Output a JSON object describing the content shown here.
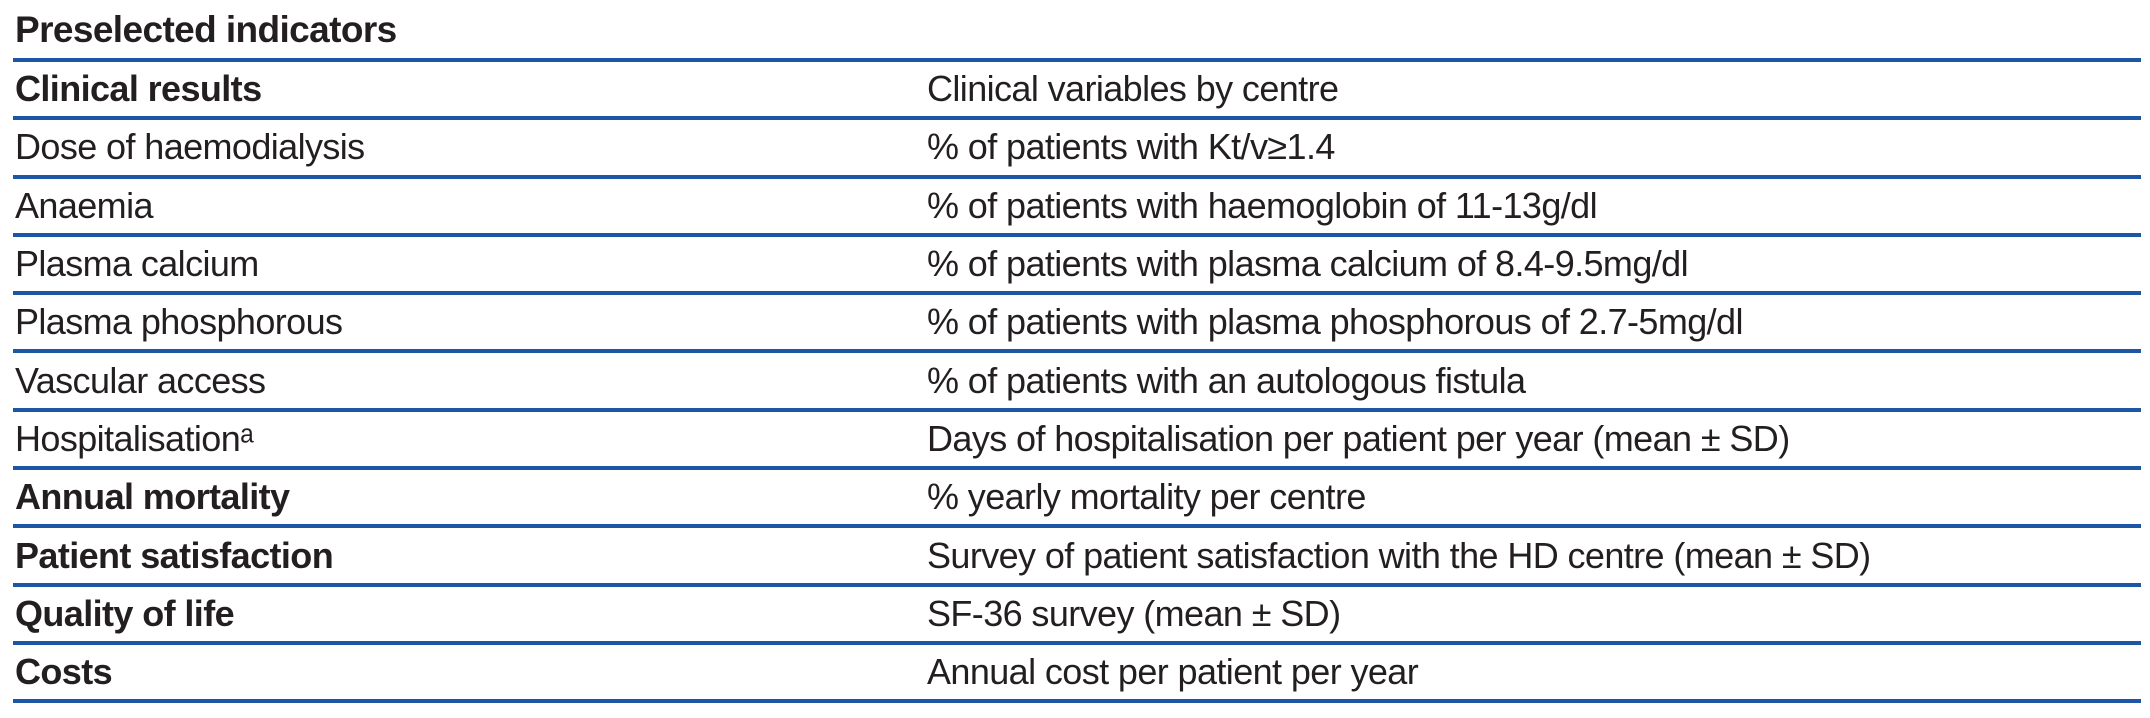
{
  "table": {
    "title": "Preselected indicators",
    "rule_color": "#1e56a6",
    "text_color": "#231f20",
    "rows": [
      {
        "left": "Clinical results",
        "right": "Clinical variables by centre"
      },
      {
        "left": "Dose of haemodialysis",
        "right": "% of patients with Kt/v≥1.4"
      },
      {
        "left": "Anaemia",
        "right": "% of patients with haemoglobin of 11-13g/dl"
      },
      {
        "left": "Plasma calcium",
        "right": "% of patients with plasma calcium of 8.4-9.5mg/dl"
      },
      {
        "left": "Plasma phosphorous",
        "right": "% of patients with plasma phosphorous of 2.7-5mg/dl"
      },
      {
        "left": "Vascular access",
        "right": "% of patients with an autologous fistula"
      },
      {
        "left": "Hospitalisationᵃ",
        "right": "Days of hospitalisation per patient per year (mean ± SD)"
      },
      {
        "left": "Annual mortality",
        "right": "% yearly mortality per centre"
      },
      {
        "left": "Patient satisfaction",
        "right": "Survey of patient satisfaction with the HD centre (mean ± SD)"
      },
      {
        "left": "Quality of life",
        "right": "SF-36 survey (mean ± SD)"
      },
      {
        "left": "Costs",
        "right": "Annual cost per patient per year"
      }
    ]
  }
}
